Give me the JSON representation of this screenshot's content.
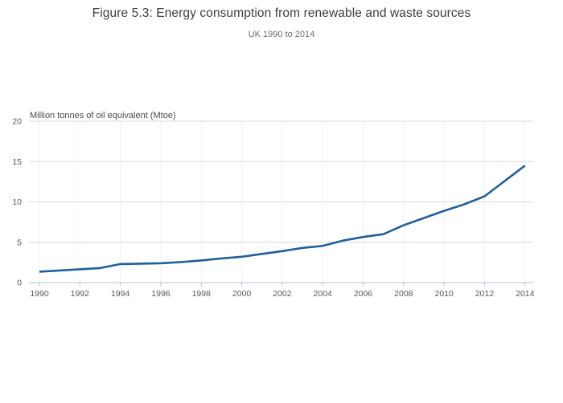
{
  "title": "Figure 5.3: Energy consumption from renewable and waste sources",
  "subtitle": "UK 1990 to 2014",
  "chart_data": {
    "type": "line",
    "title": "Figure 5.3: Energy consumption from renewable and waste sources",
    "subtitle": "UK 1990 to 2014",
    "ylabel": "Million tonnes of oil equivalent (Mtoe)",
    "xlabel": "",
    "x": [
      1990,
      1991,
      1992,
      1993,
      1994,
      1995,
      1996,
      1997,
      1998,
      1999,
      2000,
      2001,
      2002,
      2003,
      2004,
      2005,
      2006,
      2007,
      2008,
      2009,
      2010,
      2011,
      2012,
      2013,
      2014
    ],
    "values": [
      1.35,
      1.5,
      1.65,
      1.8,
      2.3,
      2.35,
      2.4,
      2.55,
      2.75,
      3.0,
      3.2,
      3.55,
      3.9,
      4.3,
      4.55,
      5.2,
      5.65,
      6.0,
      7.1,
      8.0,
      8.9,
      9.7,
      10.7,
      12.6,
      14.5
    ],
    "ylim": [
      0,
      20
    ],
    "yticks": [
      0,
      5,
      10,
      15,
      20
    ],
    "xticks": [
      1990,
      1992,
      1994,
      1996,
      1998,
      2000,
      2002,
      2004,
      2006,
      2008,
      2010,
      2012,
      2014
    ],
    "grid": "horizontal",
    "legend": "none",
    "colors": {
      "line": "#20609C",
      "h_grid": "#d9d9d9",
      "v_grid": "#eef3f7",
      "axis": "#b3c6d6",
      "tick_label": "#58595b",
      "axis_title": "#4a4a4a",
      "title": "#3d3d3d",
      "subtitle": "#6e6e6e",
      "background": "#ffffff"
    }
  }
}
